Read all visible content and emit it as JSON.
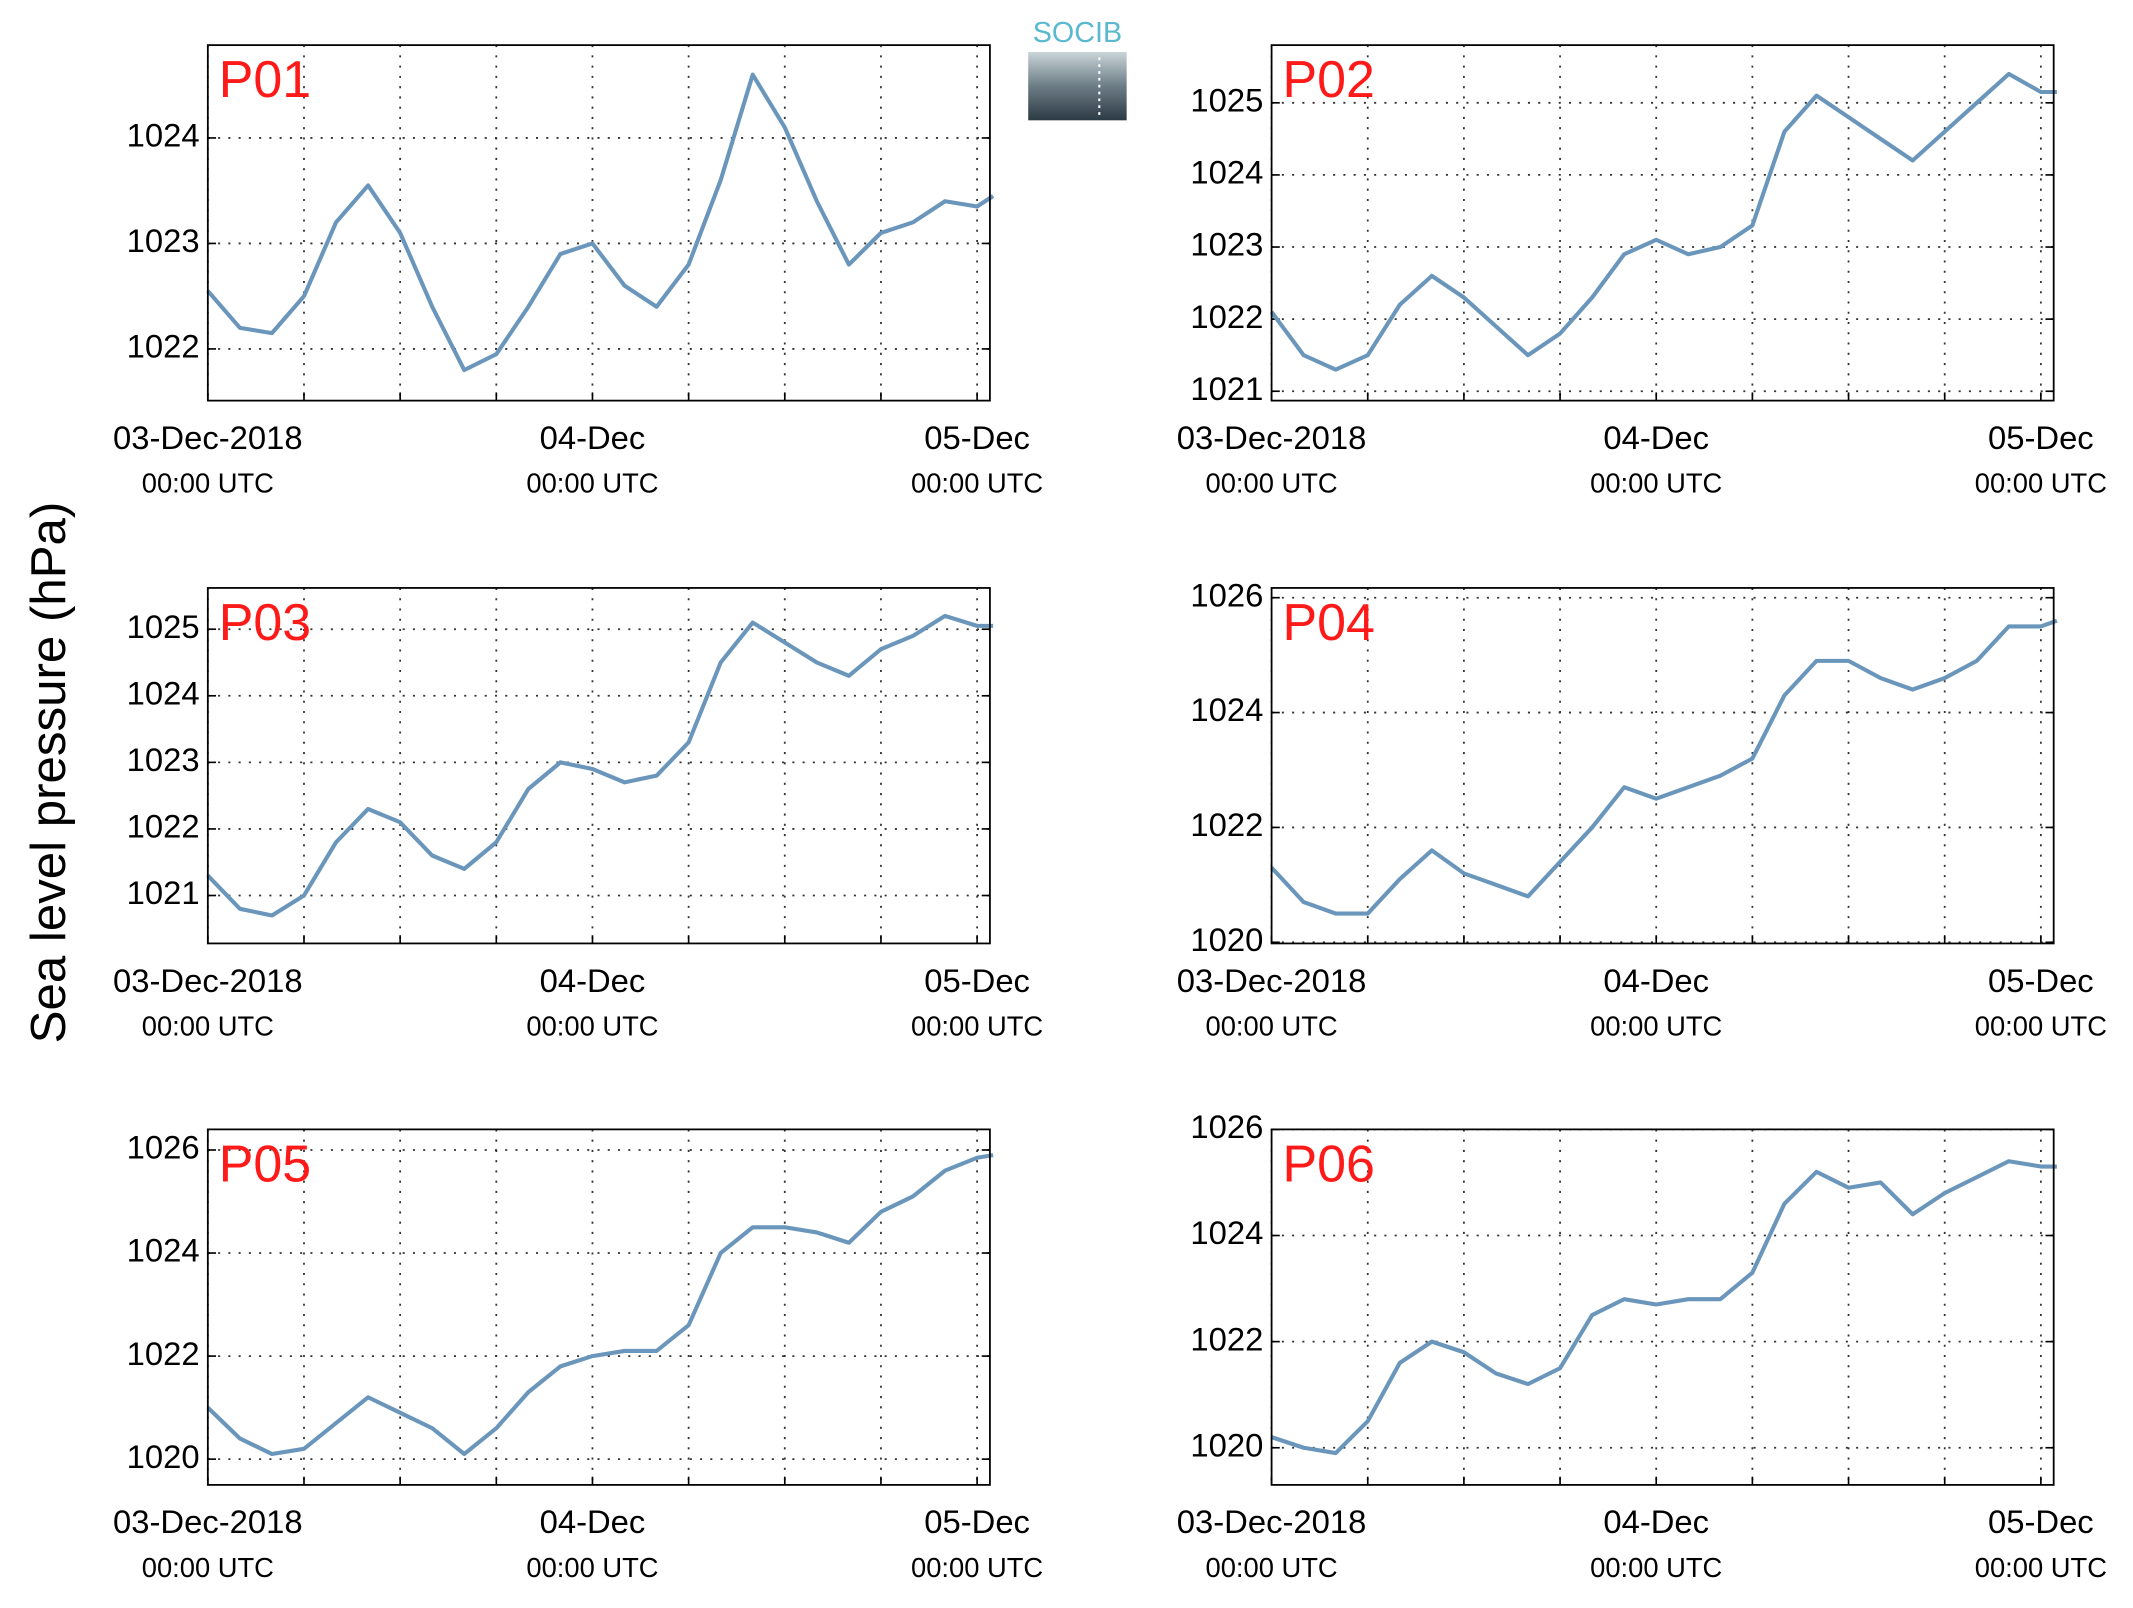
{
  "y_label": "Sea level pressure (hPa)",
  "logo": {
    "text": "SOCIB"
  },
  "chart_data": [
    {
      "type": "line",
      "title": "P01",
      "color": "#6b96bb",
      "grid": true,
      "x": [
        0,
        2,
        4,
        6,
        8,
        10,
        12,
        14,
        16,
        18,
        20,
        22,
        24,
        26,
        28,
        30,
        32,
        34,
        36,
        38,
        40,
        42,
        44,
        46,
        48,
        49
      ],
      "values": [
        1022.55,
        1022.2,
        1022.15,
        1022.5,
        1023.2,
        1023.55,
        1023.1,
        1022.4,
        1021.8,
        1021.95,
        1022.4,
        1022.9,
        1023.0,
        1022.6,
        1022.4,
        1022.8,
        1023.6,
        1024.6,
        1024.1,
        1023.4,
        1022.8,
        1023.1,
        1023.2,
        1023.4,
        1023.35,
        1023.45
      ],
      "xlim": [
        0,
        48.8
      ],
      "ylim": [
        1021.51,
        1024.88
      ],
      "yticks": [
        1022,
        1023,
        1024
      ],
      "xticks": [
        {
          "value": 0,
          "label": "03-Dec-2018",
          "sublabel": "00:00 UTC"
        },
        {
          "value": 24,
          "label": "04-Dec",
          "sublabel": "00:00 UTC"
        },
        {
          "value": 48,
          "label": "05-Dec",
          "sublabel": "00:00 UTC"
        }
      ],
      "xgrid": [
        6,
        12,
        18,
        30,
        36,
        42
      ]
    },
    {
      "type": "line",
      "title": "P02",
      "color": "#6b96bb",
      "grid": true,
      "x": [
        0,
        2,
        4,
        6,
        8,
        10,
        12,
        14,
        16,
        18,
        20,
        22,
        24,
        26,
        28,
        30,
        32,
        34,
        36,
        38,
        40,
        42,
        44,
        46,
        48,
        49
      ],
      "values": [
        1022.1,
        1021.5,
        1021.3,
        1021.5,
        1022.2,
        1022.6,
        1022.3,
        1021.9,
        1021.5,
        1021.8,
        1022.3,
        1022.9,
        1023.1,
        1022.9,
        1023.0,
        1023.3,
        1024.6,
        1025.1,
        1024.8,
        1024.5,
        1024.2,
        1024.6,
        1025.0,
        1025.4,
        1025.15,
        1025.15
      ],
      "xlim": [
        0,
        48.8
      ],
      "ylim": [
        1020.87,
        1025.8
      ],
      "yticks": [
        1021,
        1022,
        1023,
        1024,
        1025
      ],
      "xticks": [
        {
          "value": 0,
          "label": "03-Dec-2018",
          "sublabel": "00:00 UTC"
        },
        {
          "value": 24,
          "label": "04-Dec",
          "sublabel": "00:00 UTC"
        },
        {
          "value": 48,
          "label": "05-Dec",
          "sublabel": "00:00 UTC"
        }
      ],
      "xgrid": [
        6,
        12,
        18,
        30,
        36,
        42
      ]
    },
    {
      "type": "line",
      "title": "P03",
      "color": "#6b96bb",
      "grid": true,
      "x": [
        0,
        2,
        4,
        6,
        8,
        10,
        12,
        14,
        16,
        18,
        20,
        22,
        24,
        26,
        28,
        30,
        32,
        34,
        36,
        38,
        40,
        42,
        44,
        46,
        48,
        49
      ],
      "values": [
        1021.3,
        1020.8,
        1020.7,
        1021.0,
        1021.8,
        1022.3,
        1022.1,
        1021.6,
        1021.4,
        1021.8,
        1022.6,
        1023.0,
        1022.9,
        1022.7,
        1022.8,
        1023.3,
        1024.5,
        1025.1,
        1024.8,
        1024.5,
        1024.3,
        1024.7,
        1024.9,
        1025.2,
        1025.05,
        1025.05
      ],
      "xlim": [
        0,
        48.8
      ],
      "ylim": [
        1020.28,
        1025.62
      ],
      "yticks": [
        1021,
        1022,
        1023,
        1024,
        1025
      ],
      "xticks": [
        {
          "value": 0,
          "label": "03-Dec-2018",
          "sublabel": "00:00 UTC"
        },
        {
          "value": 24,
          "label": "04-Dec",
          "sublabel": "00:00 UTC"
        },
        {
          "value": 48,
          "label": "05-Dec",
          "sublabel": "00:00 UTC"
        }
      ],
      "xgrid": [
        6,
        12,
        18,
        30,
        36,
        42
      ]
    },
    {
      "type": "line",
      "title": "P04",
      "color": "#6b96bb",
      "grid": true,
      "x": [
        0,
        2,
        4,
        6,
        8,
        10,
        12,
        14,
        16,
        18,
        20,
        22,
        24,
        26,
        28,
        30,
        32,
        34,
        36,
        38,
        40,
        42,
        44,
        46,
        48,
        49
      ],
      "values": [
        1021.3,
        1020.7,
        1020.5,
        1020.5,
        1021.1,
        1021.6,
        1021.2,
        1021.0,
        1020.8,
        1021.4,
        1022.0,
        1022.7,
        1022.5,
        1022.7,
        1022.9,
        1023.2,
        1024.3,
        1024.9,
        1024.9,
        1024.6,
        1024.4,
        1024.6,
        1024.9,
        1025.5,
        1025.5,
        1025.6
      ],
      "xlim": [
        0,
        48.8
      ],
      "ylim": [
        1019.98,
        1026.17
      ],
      "yticks": [
        1020,
        1022,
        1024,
        1026
      ],
      "xticks": [
        {
          "value": 0,
          "label": "03-Dec-2018",
          "sublabel": "00:00 UTC"
        },
        {
          "value": 24,
          "label": "04-Dec",
          "sublabel": "00:00 UTC"
        },
        {
          "value": 48,
          "label": "05-Dec",
          "sublabel": "00:00 UTC"
        }
      ],
      "xgrid": [
        6,
        12,
        18,
        30,
        36,
        42
      ]
    },
    {
      "type": "line",
      "title": "P05",
      "color": "#6b96bb",
      "grid": true,
      "x": [
        0,
        2,
        4,
        6,
        8,
        10,
        12,
        14,
        16,
        18,
        20,
        22,
        24,
        26,
        28,
        30,
        32,
        34,
        36,
        38,
        40,
        42,
        44,
        46,
        48,
        49
      ],
      "values": [
        1021.0,
        1020.4,
        1020.1,
        1020.2,
        1020.7,
        1021.2,
        1020.9,
        1020.6,
        1020.1,
        1020.6,
        1021.3,
        1021.8,
        1022.0,
        1022.1,
        1022.1,
        1022.6,
        1024.0,
        1024.5,
        1024.5,
        1024.4,
        1024.2,
        1024.8,
        1025.1,
        1025.6,
        1025.85,
        1025.9
      ],
      "xlim": [
        0,
        48.8
      ],
      "ylim": [
        1019.5,
        1026.4
      ],
      "yticks": [
        1020,
        1022,
        1024,
        1026
      ],
      "xticks": [
        {
          "value": 0,
          "label": "03-Dec-2018",
          "sublabel": "00:00 UTC"
        },
        {
          "value": 24,
          "label": "04-Dec",
          "sublabel": "00:00 UTC"
        },
        {
          "value": 48,
          "label": "05-Dec",
          "sublabel": "00:00 UTC"
        }
      ],
      "xgrid": [
        6,
        12,
        18,
        30,
        36,
        42
      ]
    },
    {
      "type": "line",
      "title": "P06",
      "color": "#6b96bb",
      "grid": true,
      "x": [
        0,
        2,
        4,
        6,
        8,
        10,
        12,
        14,
        16,
        18,
        20,
        22,
        24,
        26,
        28,
        30,
        32,
        34,
        36,
        38,
        40,
        42,
        44,
        46,
        48,
        49
      ],
      "values": [
        1020.2,
        1020.0,
        1019.9,
        1020.5,
        1021.6,
        1022.0,
        1021.8,
        1021.4,
        1021.2,
        1021.5,
        1022.5,
        1022.8,
        1022.7,
        1022.8,
        1022.8,
        1023.3,
        1024.6,
        1025.2,
        1024.9,
        1025.0,
        1024.4,
        1024.8,
        1025.1,
        1025.4,
        1025.3,
        1025.3
      ],
      "xlim": [
        0,
        48.8
      ],
      "ylim": [
        1019.3,
        1026.0
      ],
      "yticks": [
        1020,
        1022,
        1024,
        1026
      ],
      "xticks": [
        {
          "value": 0,
          "label": "03-Dec-2018",
          "sublabel": "00:00 UTC"
        },
        {
          "value": 24,
          "label": "04-Dec",
          "sublabel": "00:00 UTC"
        },
        {
          "value": 48,
          "label": "05-Dec",
          "sublabel": "00:00 UTC"
        }
      ],
      "xgrid": [
        6,
        12,
        18,
        30,
        36,
        42
      ]
    }
  ]
}
